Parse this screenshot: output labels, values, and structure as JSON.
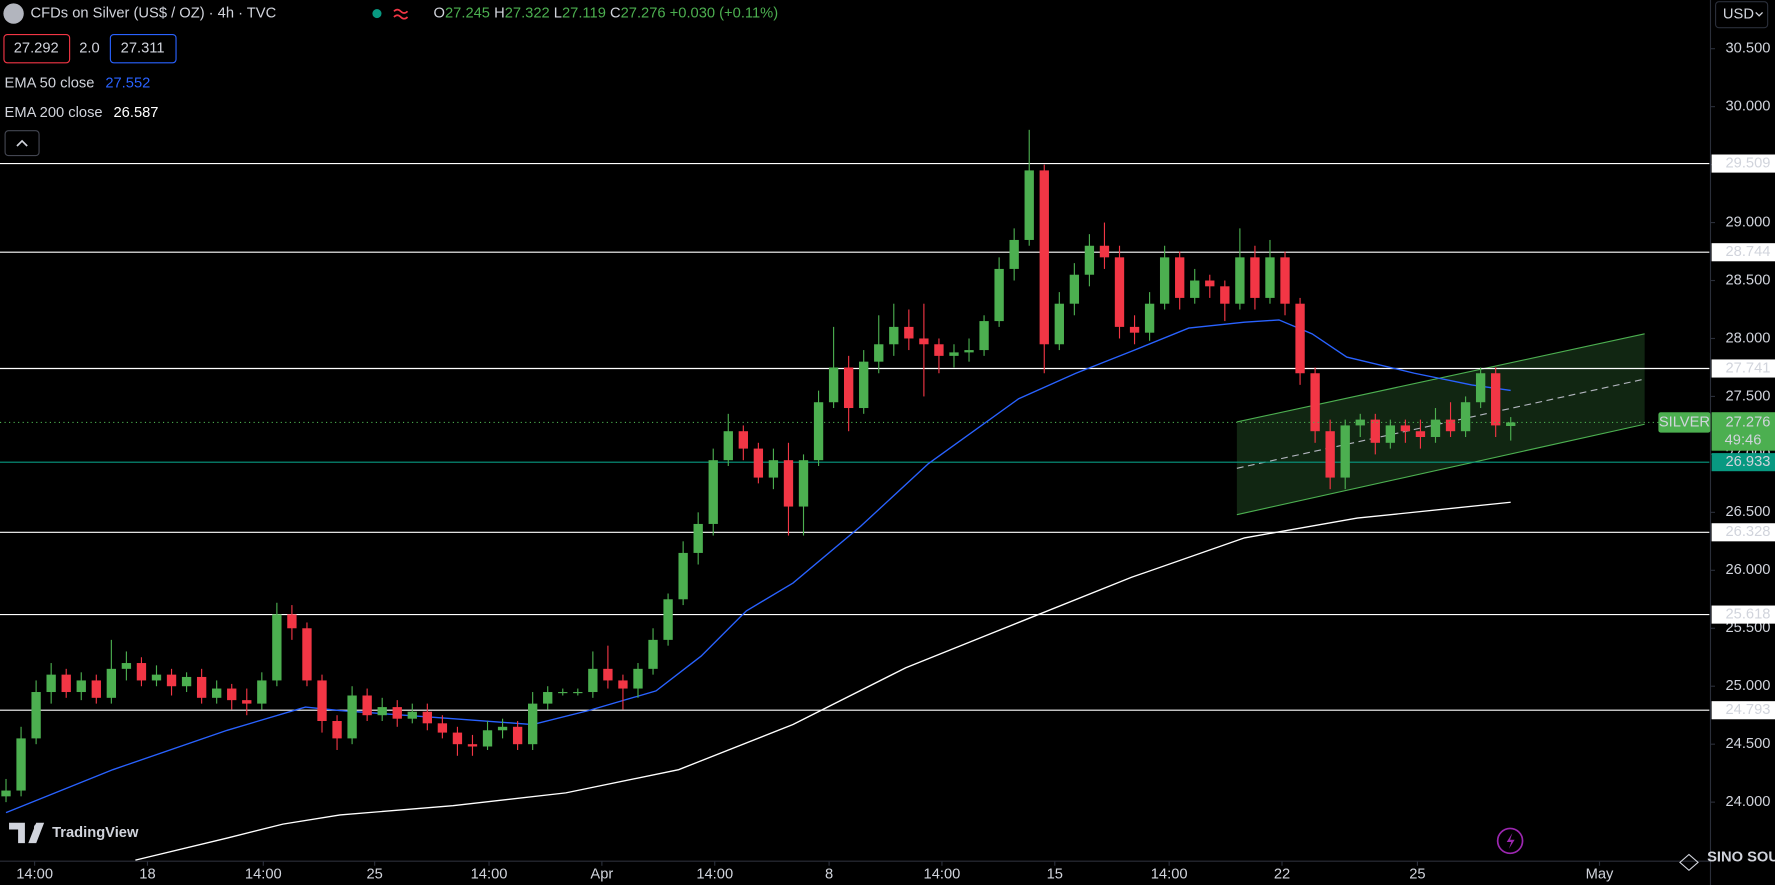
{
  "header": {
    "title": "CFDs on Silver (US$ / OZ) · 4h · TVC",
    "ohlc_labels": [
      "O",
      "H",
      "L",
      "C"
    ],
    "change": "+0.030 (+0.11%)",
    "sell": "27.292",
    "spread": "2.0",
    "buy": "27.311",
    "currency": "USD"
  },
  "branding": "TradingView",
  "watermark": "SINO SOUND",
  "chart_data": {
    "type": "candlestick",
    "up_color": "#4caf50",
    "down_color": "#f23645",
    "open": [
      24.05,
      24.1,
      24.55,
      24.95,
      25.1,
      24.95,
      25.05,
      24.9,
      25.15,
      25.2,
      25.05,
      25.1,
      25.0,
      25.08,
      24.9,
      24.98,
      24.88,
      24.85,
      25.05,
      25.62,
      25.5,
      25.05,
      24.7,
      24.55,
      24.92,
      24.75,
      24.82,
      24.72,
      24.78,
      24.68,
      24.6,
      24.5,
      24.48,
      24.62,
      24.65,
      24.5,
      24.85,
      24.95,
      24.95,
      24.95,
      25.15,
      25.05,
      24.98,
      25.15,
      25.4,
      25.75,
      26.15,
      26.4,
      26.95,
      27.2,
      27.05,
      26.8,
      26.95,
      26.55,
      26.95,
      27.45,
      27.75,
      27.4,
      27.8,
      27.95,
      28.1,
      28.0,
      27.95,
      27.85,
      27.88,
      27.9,
      28.15,
      28.6,
      28.85,
      29.45,
      27.95,
      28.3,
      28.55,
      28.8,
      28.7,
      28.1,
      28.05,
      28.3,
      28.7,
      28.35,
      28.5,
      28.45,
      28.3,
      28.7,
      28.35,
      28.7,
      28.3,
      27.7,
      27.2,
      26.8,
      27.25,
      27.3,
      27.1,
      27.25,
      27.2,
      27.15,
      27.3,
      27.2,
      27.45,
      27.7,
      27.245
    ],
    "high": [
      24.2,
      24.65,
      25.05,
      25.2,
      25.15,
      25.12,
      25.1,
      25.4,
      25.3,
      25.25,
      25.18,
      25.15,
      25.12,
      25.15,
      25.05,
      25.02,
      24.98,
      25.12,
      25.72,
      25.7,
      25.55,
      25.1,
      24.75,
      25.0,
      24.98,
      24.9,
      24.88,
      24.85,
      24.85,
      24.75,
      24.65,
      24.58,
      24.7,
      24.72,
      24.7,
      24.95,
      25.0,
      24.98,
      24.98,
      25.3,
      25.35,
      25.1,
      25.2,
      25.5,
      25.8,
      26.25,
      26.5,
      27.05,
      27.35,
      27.25,
      27.1,
      27.05,
      27.1,
      27.0,
      27.55,
      28.1,
      27.85,
      27.9,
      28.2,
      28.3,
      28.25,
      28.3,
      28.0,
      27.95,
      28.0,
      28.2,
      28.7,
      28.95,
      29.8,
      29.5,
      28.4,
      28.65,
      28.9,
      29.0,
      28.8,
      28.2,
      28.4,
      28.8,
      28.75,
      28.6,
      28.55,
      28.5,
      28.95,
      28.8,
      28.85,
      28.75,
      28.35,
      27.75,
      27.3,
      27.3,
      27.35,
      27.35,
      27.3,
      27.3,
      27.3,
      27.4,
      27.45,
      27.5,
      27.75,
      27.75,
      27.322
    ],
    "low": [
      24.0,
      24.05,
      24.5,
      24.85,
      24.9,
      24.88,
      24.85,
      24.85,
      25.05,
      25.0,
      25.0,
      24.92,
      24.95,
      24.85,
      24.85,
      24.8,
      24.75,
      24.8,
      25.0,
      25.4,
      25.0,
      24.6,
      24.45,
      24.5,
      24.7,
      24.7,
      24.65,
      24.68,
      24.62,
      24.55,
      24.4,
      24.4,
      24.45,
      24.55,
      24.45,
      24.45,
      24.8,
      24.92,
      24.92,
      24.9,
      24.98,
      24.8,
      24.9,
      25.1,
      25.35,
      25.7,
      26.05,
      26.3,
      26.9,
      26.95,
      26.75,
      26.7,
      26.3,
      26.3,
      26.9,
      27.4,
      27.2,
      27.35,
      27.7,
      27.85,
      27.9,
      27.5,
      27.7,
      27.75,
      27.8,
      27.85,
      28.1,
      28.5,
      28.8,
      27.7,
      27.9,
      28.2,
      28.45,
      28.6,
      28.0,
      27.95,
      27.98,
      28.25,
      28.25,
      28.3,
      28.35,
      28.15,
      28.25,
      28.25,
      28.3,
      28.2,
      27.6,
      27.1,
      26.7,
      26.7,
      27.15,
      27.0,
      27.05,
      27.1,
      27.05,
      27.1,
      27.15,
      27.15,
      27.4,
      27.15,
      27.119
    ],
    "close": [
      24.1,
      24.55,
      24.95,
      25.1,
      24.95,
      25.05,
      24.9,
      25.15,
      25.2,
      25.05,
      25.1,
      25.0,
      25.08,
      24.9,
      24.98,
      24.88,
      24.85,
      25.05,
      25.62,
      25.5,
      25.05,
      24.7,
      24.55,
      24.92,
      24.75,
      24.82,
      24.72,
      24.78,
      24.68,
      24.6,
      24.5,
      24.48,
      24.62,
      24.65,
      24.5,
      24.85,
      24.95,
      24.95,
      24.95,
      25.15,
      25.05,
      24.98,
      25.15,
      25.4,
      25.75,
      26.15,
      26.4,
      26.95,
      27.2,
      27.05,
      26.8,
      26.95,
      26.55,
      26.95,
      27.45,
      27.75,
      27.4,
      27.8,
      27.95,
      28.1,
      28.0,
      27.95,
      27.85,
      27.88,
      27.9,
      28.15,
      28.6,
      28.85,
      29.45,
      27.95,
      28.3,
      28.55,
      28.8,
      28.7,
      28.1,
      28.05,
      28.3,
      28.7,
      28.35,
      28.5,
      28.45,
      28.3,
      28.7,
      28.35,
      28.7,
      28.3,
      27.7,
      27.2,
      26.8,
      27.25,
      27.3,
      27.1,
      27.25,
      27.2,
      27.15,
      27.3,
      27.2,
      27.45,
      27.7,
      27.25,
      27.276
    ],
    "series": [
      {
        "name": "EMA 50 close",
        "color": "#2962ff",
        "x": [
          0,
          7.1,
          14.7,
          19.9,
          22.2,
          29.7,
          35.0,
          38.7,
          43.2,
          46.2,
          49.2,
          52.3,
          56.8,
          61.3,
          67.3,
          71.1,
          74.8,
          78.6,
          82.3,
          84.6,
          86.8,
          89.1,
          93.6,
          97.4,
          100
        ],
        "values": [
          23.91,
          24.28,
          24.62,
          24.82,
          24.79,
          24.72,
          24.67,
          24.79,
          24.96,
          25.26,
          25.65,
          25.89,
          26.38,
          26.92,
          27.48,
          27.7,
          27.89,
          28.09,
          28.14,
          28.16,
          28.04,
          27.84,
          27.7,
          27.6,
          27.552
        ]
      },
      {
        "name": "EMA 200 close",
        "color": "#ffffff",
        "x": [
          8.6,
          14.7,
          18.4,
          22.2,
          29.7,
          37.2,
          44.7,
          52.3,
          59.8,
          67.3,
          74.8,
          82.3,
          89.8,
          100
        ],
        "values": [
          23.5,
          23.69,
          23.81,
          23.89,
          23.97,
          24.08,
          24.28,
          24.67,
          25.16,
          25.55,
          25.94,
          26.28,
          26.45,
          26.587
        ]
      }
    ],
    "levels": [
      {
        "value": 29.509,
        "color": "#ffffff"
      },
      {
        "value": 28.744,
        "color": "#ffffff"
      },
      {
        "value": 27.741,
        "color": "#ffffff"
      },
      {
        "value": 26.933,
        "color": "#089981"
      },
      {
        "value": 26.328,
        "color": "#ffffff"
      },
      {
        "value": 25.618,
        "color": "#ffffff"
      },
      {
        "value": 24.793,
        "color": "#ffffff"
      }
    ],
    "channel": {
      "x": [
        81.8,
        108.9
      ],
      "upper": [
        27.28,
        28.04
      ],
      "lower": [
        26.48,
        27.26
      ],
      "color": "#4caf50"
    },
    "symbol_label": "SILVER",
    "countdown": "49:46",
    "ylim": [
      23.5,
      30.92
    ],
    "yticks": [
      {
        "value": 24,
        "label": "24.000"
      },
      {
        "value": 24.5,
        "label": "24.500"
      },
      {
        "value": 25,
        "label": "25.000"
      },
      {
        "value": 25.5,
        "label": "25.500"
      },
      {
        "value": 26,
        "label": "26.000"
      },
      {
        "value": 26.5,
        "label": "26.500"
      },
      {
        "value": 27,
        "label": "27.000"
      },
      {
        "value": 27.5,
        "label": "27.500"
      },
      {
        "value": 28,
        "label": "28.000"
      },
      {
        "value": 28.5,
        "label": "28.500"
      },
      {
        "value": 29,
        "label": "29.000"
      },
      {
        "value": 29.5,
        "label": "29.500"
      },
      {
        "value": 30,
        "label": "30.000"
      },
      {
        "value": 30.5,
        "label": "30.500"
      }
    ],
    "xlim": [
      -0.4,
      113.2
    ],
    "xticks": [
      {
        "value": 1.9,
        "label": "14:00"
      },
      {
        "value": 9.4,
        "label": "18"
      },
      {
        "value": 17.1,
        "label": "14:00"
      },
      {
        "value": 24.5,
        "label": "25"
      },
      {
        "value": 32.1,
        "label": "14:00"
      },
      {
        "value": 39.6,
        "label": "Apr"
      },
      {
        "value": 47.1,
        "label": "14:00"
      },
      {
        "value": 54.7,
        "label": "8"
      },
      {
        "value": 62.2,
        "label": "14:00"
      },
      {
        "value": 69.7,
        "label": "15"
      },
      {
        "value": 77.3,
        "label": "14:00"
      },
      {
        "value": 84.8,
        "label": "22"
      },
      {
        "value": 93.8,
        "label": "25"
      },
      {
        "value": 105.9,
        "label": "May"
      }
    ]
  }
}
